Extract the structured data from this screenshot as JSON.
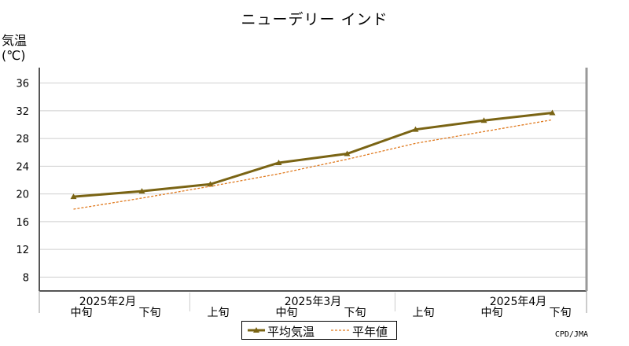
{
  "chart_data": {
    "type": "line",
    "title": "ニューデリー インド",
    "ylabel": "気温",
    "yunit": "(℃)",
    "ylim": [
      6,
      38
    ],
    "yticks": [
      8,
      12,
      16,
      20,
      24,
      28,
      32,
      36
    ],
    "grid": true,
    "x": [
      "2025年2月 中旬",
      "2025年2月 下旬",
      "2025年3月 上旬",
      "2025年3月 中旬",
      "2025年3月 下旬",
      "2025年4月 上旬",
      "2025年4月 中旬",
      "2025年4月 下旬"
    ],
    "xtick_labels": [
      "中旬",
      "下旬",
      "上旬",
      "中旬",
      "下旬",
      "上旬",
      "中旬",
      "下旬"
    ],
    "month_labels": [
      {
        "label": "2025年2月",
        "at": 0.5
      },
      {
        "label": "2025年3月",
        "at": 3.5
      },
      {
        "label": "2025年4月",
        "at": 6.5
      }
    ],
    "series": [
      {
        "name": "平均気温",
        "color": "#7a6414",
        "style": "solid-triangle",
        "values": [
          19.6,
          20.4,
          21.4,
          24.5,
          25.8,
          29.3,
          30.6,
          31.7
        ]
      },
      {
        "name": "平年値",
        "color": "#e07a1f",
        "style": "dashed",
        "values": [
          17.8,
          19.4,
          21.1,
          22.9,
          25.0,
          27.3,
          29.0,
          30.7
        ]
      }
    ],
    "legend": "bottom-center"
  },
  "credit": "CPD/JMA"
}
